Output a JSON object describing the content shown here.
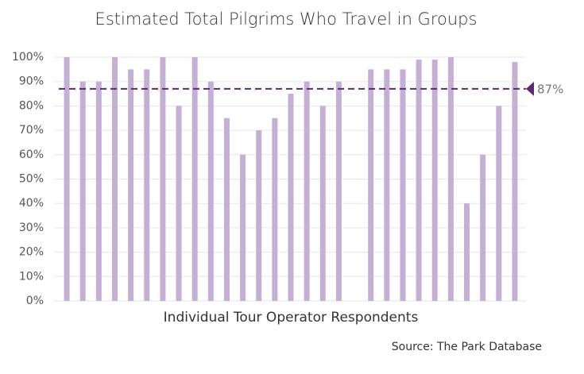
{
  "chart_data": {
    "type": "bar",
    "title": "Estimated Total Pilgrims Who Travel in Groups",
    "x_label": "Individual Tour Operator Respondents",
    "source": "Source: The Park Database",
    "categories": [
      null,
      null,
      null,
      null,
      null,
      null,
      null,
      null,
      null,
      null,
      null,
      null,
      null,
      null,
      null,
      null,
      null,
      null,
      null,
      null,
      null,
      null,
      null,
      null,
      null,
      null,
      null,
      null,
      null
    ],
    "values": [
      100,
      90,
      90,
      100,
      95,
      95,
      100,
      80,
      100,
      90,
      75,
      60,
      70,
      75,
      85,
      90,
      80,
      90,
      0,
      95,
      95,
      95,
      99,
      99,
      100,
      40,
      60,
      80,
      98
    ],
    "color": "#c5b0d5",
    "ylim": [
      0,
      100
    ],
    "yticks": [
      {
        "value": 0,
        "label": "0%"
      },
      {
        "value": 10,
        "label": "10%"
      },
      {
        "value": 20,
        "label": "20%"
      },
      {
        "value": 30,
        "label": "30%"
      },
      {
        "value": 40,
        "label": "40%"
      },
      {
        "value": 50,
        "label": "50%"
      },
      {
        "value": 60,
        "label": "60%"
      },
      {
        "value": 70,
        "label": "70%"
      },
      {
        "value": 80,
        "label": "80%"
      },
      {
        "value": 90,
        "label": "90%"
      },
      {
        "value": 100,
        "label": "100%"
      }
    ],
    "grid": true,
    "reference_line": {
      "value": 87,
      "label": "87%",
      "color": "#5c2a6e"
    }
  }
}
